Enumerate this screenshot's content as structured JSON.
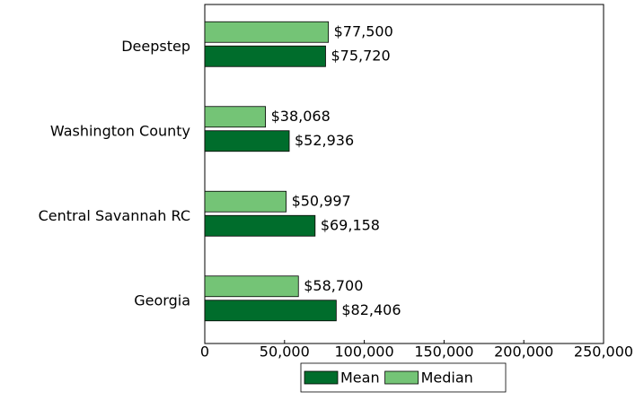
{
  "chart_data": {
    "type": "hbar",
    "categories": [
      "Deepstep",
      "Washington County",
      "Central Savannah RC",
      "Georgia"
    ],
    "series": [
      {
        "name": "Mean",
        "color": "#006d2c",
        "values": [
          75720,
          52936,
          69158,
          82406
        ],
        "value_labels": [
          "$75,720",
          "$52,936",
          "$69,158",
          "$82,406"
        ]
      },
      {
        "name": "Median",
        "color": "#74c476",
        "values": [
          77500,
          38068,
          50997,
          58700
        ],
        "value_labels": [
          "$77,500",
          "$38,068",
          "$50,997",
          "$58,700"
        ]
      }
    ],
    "xlim": [
      0,
      250000
    ],
    "xticks": [
      0,
      {
        "value": 50000,
        "label": "50,000"
      },
      {
        "value": 100000,
        "label": "100,000"
      },
      {
        "value": 150000,
        "label": "150,000"
      },
      {
        "value": 200000,
        "label": "200,000"
      },
      {
        "value": 250000,
        "label": "250,000"
      }
    ],
    "legend": "bottom"
  }
}
